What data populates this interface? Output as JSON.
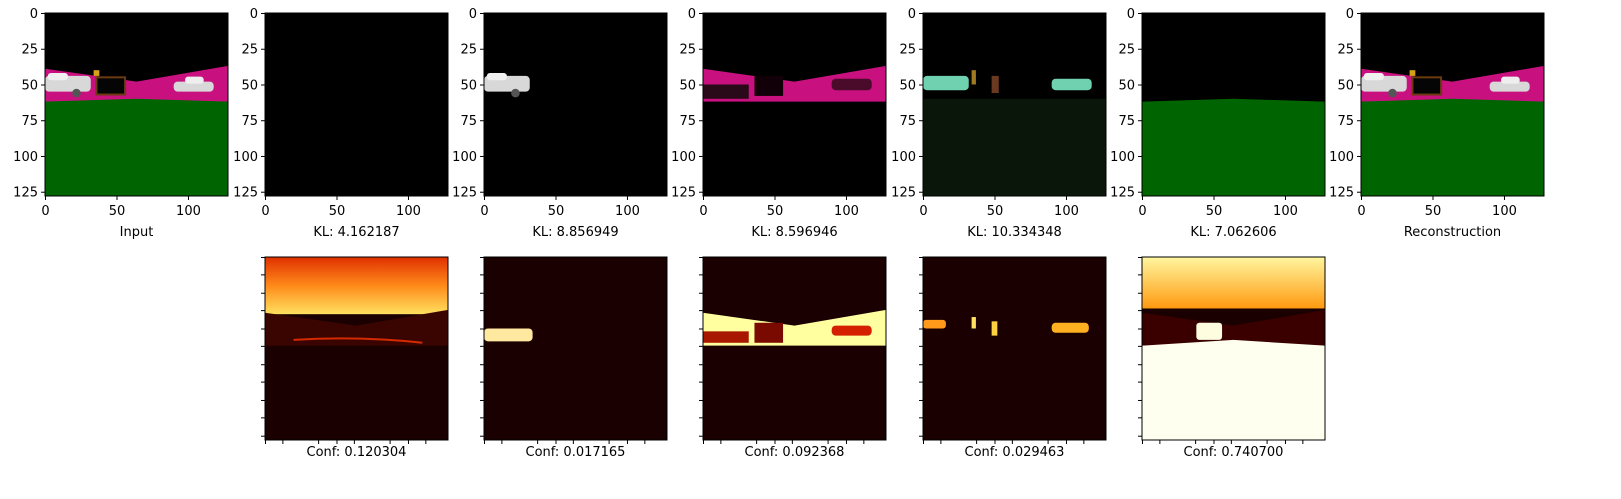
{
  "chart_data": {
    "type": "image-grid",
    "panel_axes": {
      "y_ticks": [
        "0",
        "25",
        "50",
        "75",
        "100",
        "125"
      ],
      "x_ticks": [
        "0",
        "50",
        "100"
      ],
      "range": [
        0,
        128
      ]
    },
    "top_row": [
      {
        "caption": "Input",
        "kind": "scene",
        "layers": [
          "sky",
          "road",
          "grass",
          "car-left",
          "sign",
          "box",
          "car-right"
        ]
      },
      {
        "caption": "KL: 4.162187",
        "kind": "dark",
        "layers": []
      },
      {
        "caption": "KL: 8.856949",
        "kind": "dark",
        "layers": [
          "car-left"
        ]
      },
      {
        "caption": "KL: 8.596946",
        "kind": "dark",
        "layers": [
          "road-magenta"
        ]
      },
      {
        "caption": "KL: 10.334348",
        "kind": "dark",
        "layers": [
          "cars-teal"
        ]
      },
      {
        "caption": "KL: 7.062606",
        "kind": "dark",
        "layers": [
          "grass"
        ]
      },
      {
        "caption": "Reconstruction",
        "kind": "scene",
        "layers": [
          "sky",
          "road",
          "grass",
          "car-left",
          "sign",
          "box",
          "car-right"
        ]
      }
    ],
    "bottom_row": [
      {
        "caption": "Conf: 0.120304",
        "kind": "heatmap-sky"
      },
      {
        "caption": "Conf: 0.017165",
        "kind": "heatmap-car"
      },
      {
        "caption": "Conf: 0.092368",
        "kind": "heatmap-road"
      },
      {
        "caption": "Conf: 0.029463",
        "kind": "heatmap-objects"
      },
      {
        "caption": "Conf: 0.740700",
        "kind": "heatmap-grass"
      }
    ],
    "colors": {
      "sky": "#000000",
      "road": "#c8107f",
      "grass": "#006400",
      "car": "#d8d8d8",
      "teal": "#6fd1b0",
      "heat_low": "#1a0000",
      "heat_mid": "#c21a00",
      "heat_high": "#ffffff"
    }
  }
}
